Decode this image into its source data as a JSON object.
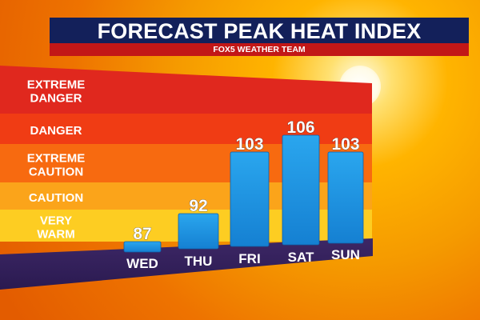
{
  "header": {
    "title": "FORECAST PEAK HEAT INDEX",
    "subtitle": "FOX5 WEATHER TEAM"
  },
  "colors": {
    "title_bar": "#13205a",
    "subtitle_bar": "#c21717",
    "band_extreme_danger": "#e0281e",
    "band_danger": "#f03c14",
    "band_extreme_caution": "#f76a10",
    "band_caution": "#fba41a",
    "band_very_warm": "#fdcd22",
    "axis_bar": "#35215e",
    "bar": "#1a93e0"
  },
  "chart_data": {
    "type": "bar",
    "categories": [
      "WED",
      "THU",
      "FRI",
      "SAT",
      "SUN"
    ],
    "values": [
      87,
      92,
      103,
      106,
      103
    ],
    "data_labels": [
      "87",
      "92",
      "103",
      "106",
      "103"
    ],
    "bands": [
      {
        "label_lines": [
          "EXTREME",
          "DANGER"
        ],
        "min": 125,
        "max": 140
      },
      {
        "label_lines": [
          "DANGER"
        ],
        "min": 110,
        "max": 125
      },
      {
        "label_lines": [
          "EXTREME",
          "CAUTION"
        ],
        "min": 95,
        "max": 110
      },
      {
        "label_lines": [
          "CAUTION"
        ],
        "min": 85,
        "max": 95
      },
      {
        "label_lines": [
          "VERY",
          "WARM"
        ],
        "min": 75,
        "max": 85
      }
    ],
    "ylim": [
      75,
      140
    ]
  }
}
